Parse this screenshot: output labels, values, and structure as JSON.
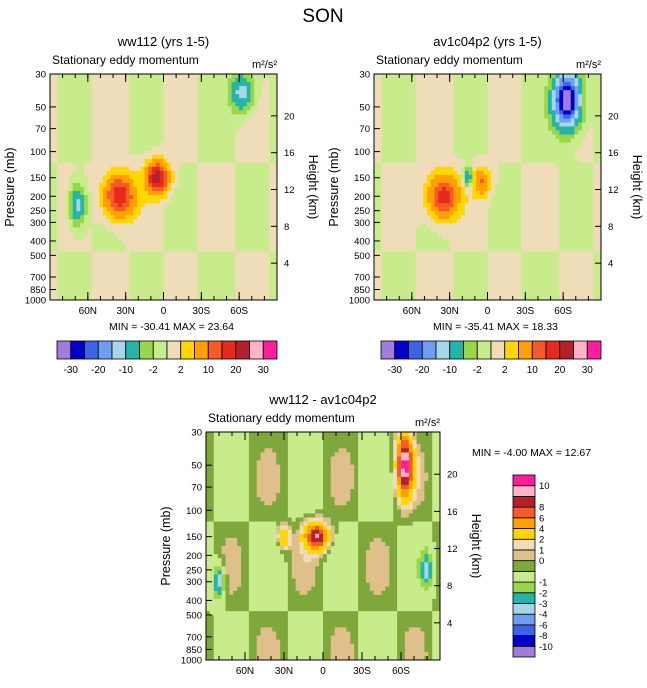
{
  "page_title": "SON",
  "units": "m²/s²",
  "colors": {
    "main": [
      "#a07ddc",
      "#0000c8",
      "#3c64e6",
      "#6e9ef0",
      "#a8d6e6",
      "#24b4a8",
      "#98d848",
      "#c8ec8c",
      "#eeddb8",
      "#ffd700",
      "#ffa000",
      "#f55a28",
      "#e52a1e",
      "#b4202c",
      "#ffb4c8",
      "#ff1e9e"
    ],
    "diff": [
      "#a07ddc",
      "#0000c8",
      "#3c64e6",
      "#6e9ef0",
      "#a8d6e6",
      "#24b4a8",
      "#98d848",
      "#c8ec8c",
      "#7fa83c",
      "#e0c08a",
      "#eeddb8",
      "#ffd700",
      "#ffa000",
      "#f55a28",
      "#b4202c",
      "#ffb4c8",
      "#ff1e9e"
    ]
  },
  "main_colorbar_labels": [
    "-30",
    "-20",
    "-10",
    "-2",
    "2",
    "10",
    "20",
    "30"
  ],
  "diff_colorbar_labels": [
    "-10",
    "-8",
    "-6",
    "-4",
    "-3",
    "-2",
    "-1",
    "0",
    "1",
    "2",
    "4",
    "6",
    "8",
    "10"
  ],
  "chart_data": [
    {
      "type": "heatmap",
      "title": "ww112 (yrs 1-5)",
      "subtitle": "Stationary eddy momentum",
      "units": "m²/s²",
      "ylabel": "Pressure (mb)",
      "ylabel_right": "Height (km)",
      "x_ticks": [
        "60N",
        "30N",
        "0",
        "30S",
        "60S"
      ],
      "x_values": [
        60,
        30,
        0,
        -30,
        -60
      ],
      "xlim": [
        90,
        -90
      ],
      "y_ticks": [
        "30",
        "50",
        "70",
        "100",
        "150",
        "200",
        "250",
        "300",
        "400",
        "500",
        "700",
        "850",
        "1000"
      ],
      "y_values": [
        30,
        50,
        70,
        100,
        150,
        200,
        250,
        300,
        400,
        500,
        700,
        850,
        1000
      ],
      "ylim": [
        30,
        1000
      ],
      "height_ticks": [
        "4",
        "8",
        "12",
        "16",
        "20"
      ],
      "height_values": [
        4,
        8,
        12,
        16,
        20
      ],
      "stats": "MIN = -30.41   MAX =  23.64",
      "min": -30.41,
      "max": 23.64,
      "features": [
        {
          "lat": 35,
          "p": 200,
          "peak": 20,
          "lat_width": 8,
          "logp_width": 0.22
        },
        {
          "lat": 5,
          "p": 150,
          "peak": 23.64,
          "lat_width": 6,
          "logp_width": 0.16
        },
        {
          "lat": 68,
          "p": 230,
          "peak": -12,
          "lat_width": 4,
          "logp_width": 0.2
        },
        {
          "lat": -62,
          "p": 40,
          "peak": -12,
          "lat_width": 6,
          "logp_width": 0.2
        }
      ]
    },
    {
      "type": "heatmap",
      "title": "av1c04p2 (yrs 1-5)",
      "subtitle": "Stationary eddy momentum",
      "units": "m²/s²",
      "ylabel": "Pressure (mb)",
      "ylabel_right": "Height (km)",
      "x_ticks": [
        "60N",
        "30N",
        "0",
        "30S",
        "60S"
      ],
      "x_values": [
        60,
        30,
        0,
        -30,
        -60
      ],
      "xlim": [
        90,
        -90
      ],
      "y_ticks": [
        "30",
        "50",
        "70",
        "100",
        "150",
        "200",
        "250",
        "300",
        "400",
        "500",
        "700",
        "850",
        "1000"
      ],
      "y_values": [
        30,
        50,
        70,
        100,
        150,
        200,
        250,
        300,
        400,
        500,
        700,
        850,
        1000
      ],
      "ylim": [
        30,
        1000
      ],
      "height_ticks": [
        "4",
        "8",
        "12",
        "16",
        "20"
      ],
      "height_values": [
        4,
        8,
        12,
        16,
        20
      ],
      "stats": "MIN = -35.41   MAX =  18.33",
      "min": -35.41,
      "max": 18.33,
      "features": [
        {
          "lat": 35,
          "p": 200,
          "peak": 18.33,
          "lat_width": 8,
          "logp_width": 0.22
        },
        {
          "lat": 5,
          "p": 160,
          "peak": 10,
          "lat_width": 5,
          "logp_width": 0.14
        },
        {
          "lat": 15,
          "p": 150,
          "peak": -10,
          "lat_width": 2.5,
          "logp_width": 0.1
        },
        {
          "lat": -63,
          "p": 45,
          "peak": -35.41,
          "lat_width": 7,
          "logp_width": 0.28
        }
      ]
    },
    {
      "type": "heatmap",
      "title": "ww112 - av1c04p2",
      "subtitle": "Stationary eddy momentum",
      "units": "m²/s²",
      "ylabel": "Pressure (mb)",
      "ylabel_right": "Height (km)",
      "x_ticks": [
        "60N",
        "30N",
        "0",
        "30S",
        "60S"
      ],
      "x_values": [
        60,
        30,
        0,
        -30,
        -60
      ],
      "xlim": [
        90,
        -90
      ],
      "y_ticks": [
        "30",
        "50",
        "70",
        "100",
        "150",
        "200",
        "250",
        "300",
        "400",
        "500",
        "700",
        "850",
        "1000"
      ],
      "y_values": [
        30,
        50,
        70,
        100,
        150,
        200,
        250,
        300,
        400,
        500,
        700,
        850,
        1000
      ],
      "ylim": [
        30,
        1000
      ],
      "height_ticks": [
        "4",
        "8",
        "12",
        "16",
        "20"
      ],
      "height_values": [
        4,
        8,
        12,
        16,
        20
      ],
      "stats": "MIN =  -4.00   MAX =  12.67",
      "min": -4.0,
      "max": 12.67,
      "features": [
        {
          "lat": -63,
          "p": 50,
          "peak": 12.67,
          "lat_width": 4,
          "logp_width": 0.3
        },
        {
          "lat": 5,
          "p": 150,
          "peak": 10,
          "lat_width": 6,
          "logp_width": 0.14
        },
        {
          "lat": 30,
          "p": 150,
          "peak": 4,
          "lat_width": 3,
          "logp_width": 0.12
        },
        {
          "lat": 80,
          "p": 300,
          "peak": -4.0,
          "lat_width": 3,
          "logp_width": 0.18
        },
        {
          "lat": -80,
          "p": 250,
          "peak": -3.5,
          "lat_width": 3,
          "logp_width": 0.18
        }
      ]
    }
  ]
}
